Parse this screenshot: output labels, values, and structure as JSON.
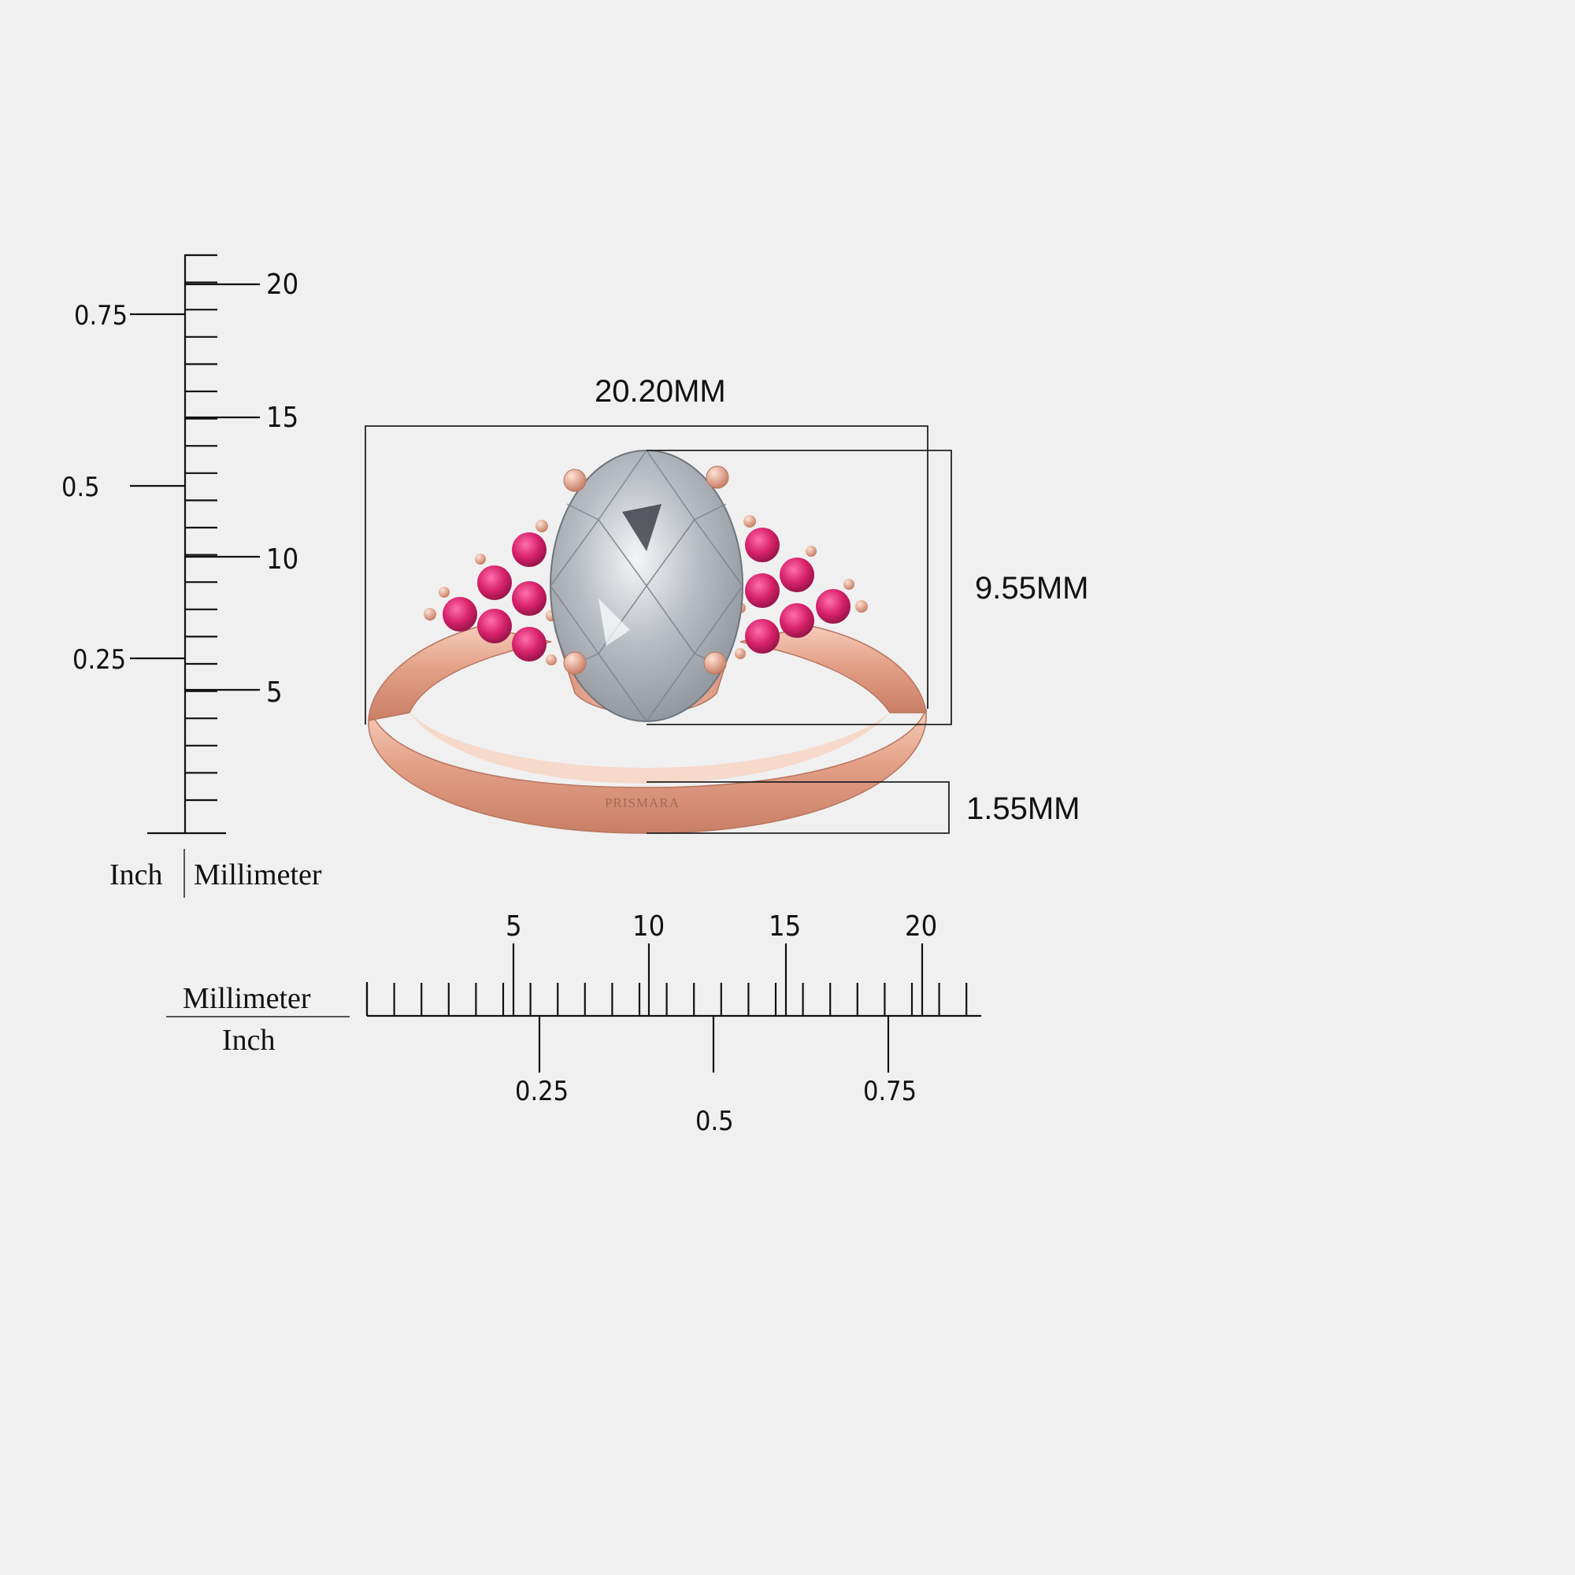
{
  "vertical_ruler": {
    "mm_labels": [
      "20",
      "15",
      "10",
      "5"
    ],
    "inch_labels": [
      "0.75",
      "0.5",
      "0.25"
    ],
    "unit_inch": "Inch",
    "unit_mm": "Millimeter"
  },
  "horizontal_ruler": {
    "mm_labels": [
      "5",
      "10",
      "15",
      "20"
    ],
    "inch_labels": [
      "0.25",
      "0.5",
      "0.75"
    ],
    "unit_mm": "Millimeter",
    "unit_inch": "Inch"
  },
  "dimensions": {
    "width": "20.20MM",
    "height": "9.55MM",
    "band": "1.55MM"
  },
  "brand": "PRISMARA",
  "colors": {
    "background": "#f0f0f0",
    "metal": "#e8a890",
    "gem_accent": "#d8226a",
    "center_stone": "#c9cdd2"
  }
}
